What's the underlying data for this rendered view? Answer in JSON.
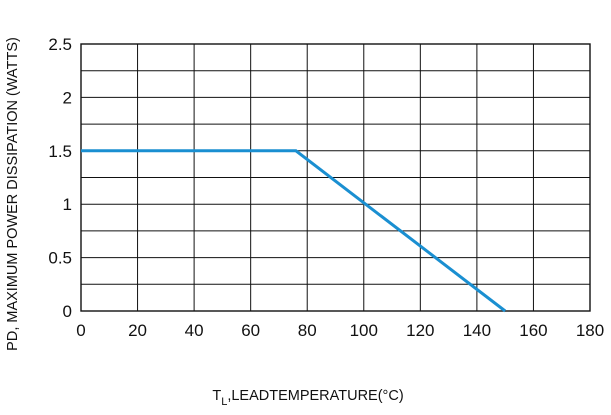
{
  "chart_data": {
    "type": "line",
    "title": "",
    "xlabel": "T_L, LEAD TEMPERATURE (°C)",
    "xlabel_parts": {
      "main": "T",
      "sub": "L",
      "rest": ",LEADTEMPERATURE(°C)"
    },
    "ylabel": "PD, MAXIMUM POWER DISSIPATION (WATTS)",
    "x_ticks": [
      "0",
      "20",
      "40",
      "60",
      "80",
      "100",
      "120",
      "140",
      "160",
      "180"
    ],
    "y_ticks": [
      "0",
      "0.5",
      "1",
      "1.5",
      "2",
      "2.5"
    ],
    "xlim": [
      0,
      180
    ],
    "ylim": [
      0,
      2.5
    ],
    "grid": true,
    "minor_grid": {
      "x_step": 20,
      "y_step": 0.25
    },
    "series": [
      {
        "name": "",
        "color": "#1a8fd1",
        "x": [
          0,
          76,
          150
        ],
        "y": [
          1.5,
          1.5,
          0
        ]
      }
    ]
  }
}
